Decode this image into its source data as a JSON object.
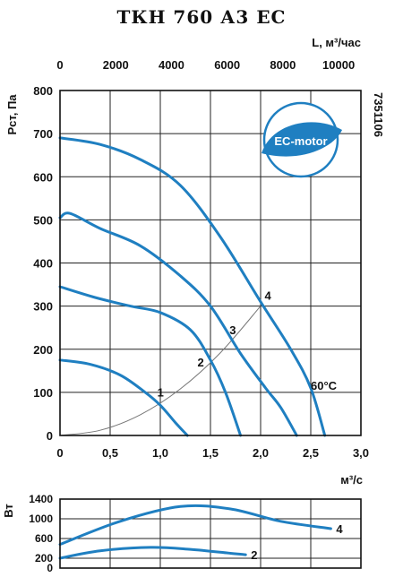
{
  "title": "ТКН 760 А3 ЕС",
  "code": "7351106",
  "badge": {
    "text": "EC-motor",
    "color": "#1f7fc1"
  },
  "temp_label": "60°C",
  "colors": {
    "curve": "#1f7fc1",
    "system": "#777777",
    "grid": "#222222"
  },
  "chart_data": [
    {
      "type": "line",
      "xlabel": "м³/с",
      "x2label": "L, м³/час",
      "ylabel": "Рст, Па",
      "xlim": [
        0,
        3.0
      ],
      "ylim": [
        0,
        800
      ],
      "x2lim": [
        0,
        10800
      ],
      "xticks": [
        "0",
        "0,5",
        "1,0",
        "1,5",
        "2,0",
        "2,5",
        "3,0"
      ],
      "xtick_values": [
        0,
        0.5,
        1.0,
        1.5,
        2.0,
        2.5,
        3.0
      ],
      "yticks": [
        "0",
        "100",
        "200",
        "300",
        "400",
        "500",
        "600",
        "700",
        "800"
      ],
      "ytick_values": [
        0,
        100,
        200,
        300,
        400,
        500,
        600,
        700,
        800
      ],
      "x2ticks": [
        "0",
        "2000",
        "4000",
        "6000",
        "8000",
        "10000"
      ],
      "x2tick_values": [
        0,
        2000,
        4000,
        6000,
        8000,
        10000
      ],
      "grid": true,
      "series": [
        {
          "name": "1",
          "x": [
            0,
            0.3,
            0.6,
            0.85,
            1.0,
            1.15,
            1.27
          ],
          "y": [
            175,
            165,
            140,
            100,
            70,
            30,
            0
          ]
        },
        {
          "name": "2",
          "x": [
            0,
            0.35,
            0.7,
            1.0,
            1.3,
            1.5,
            1.65,
            1.8
          ],
          "y": [
            345,
            320,
            300,
            285,
            245,
            175,
            100,
            0
          ]
        },
        {
          "name": "3",
          "x": [
            0,
            0.1,
            0.4,
            0.8,
            1.2,
            1.5,
            1.8,
            2.05,
            2.2,
            2.36
          ],
          "y": [
            505,
            515,
            480,
            440,
            370,
            300,
            190,
            110,
            65,
            0
          ]
        },
        {
          "name": "4",
          "x": [
            0,
            0.4,
            0.8,
            1.2,
            1.6,
            2.0,
            2.3,
            2.5,
            2.64
          ],
          "y": [
            690,
            675,
            640,
            580,
            460,
            310,
            200,
            110,
            0
          ]
        }
      ],
      "system_curve": {
        "x": [
          0,
          0.4,
          0.8,
          1.2,
          1.6,
          2.0
        ],
        "y": [
          0,
          12,
          48,
          108,
          192,
          300
        ]
      },
      "labels": [
        {
          "text": "1",
          "x": 0.97,
          "y": 90
        },
        {
          "text": "2",
          "x": 1.37,
          "y": 160
        },
        {
          "text": "3",
          "x": 1.69,
          "y": 235
        },
        {
          "text": "4",
          "x": 2.04,
          "y": 315
        }
      ]
    },
    {
      "type": "line",
      "ylabel": "Вт",
      "xlim": [
        0,
        3.0
      ],
      "ylim": [
        0,
        1400
      ],
      "yticks": [
        "0",
        "200",
        "600",
        "1000",
        "1400"
      ],
      "ytick_values": [
        0,
        200,
        600,
        1000,
        1400
      ],
      "grid": true,
      "series": [
        {
          "name": "2",
          "x": [
            0,
            0.4,
            0.9,
            1.3,
            1.7,
            1.85
          ],
          "y": [
            200,
            350,
            420,
            380,
            300,
            270
          ]
        },
        {
          "name": "4",
          "x": [
            0,
            0.6,
            1.2,
            1.7,
            2.2,
            2.7
          ],
          "y": [
            480,
            950,
            1250,
            1200,
            950,
            800
          ]
        }
      ]
    }
  ]
}
